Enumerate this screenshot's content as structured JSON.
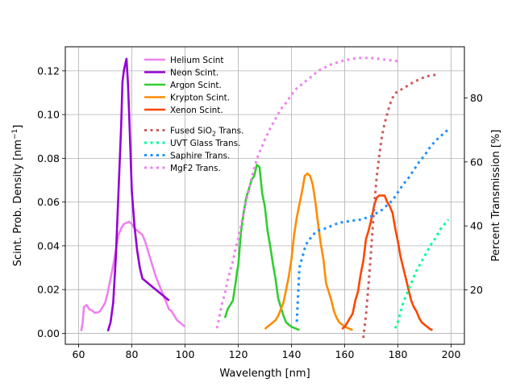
{
  "chart_data": {
    "type": "line",
    "xlabel": "Wavelength [nm]",
    "ylabel_left": "Scint. Prob. Density [nm",
    "ylabel_left_sup": "−1",
    "ylabel_left_close": "]",
    "ylabel_right": "Percent Transmission [%]",
    "xlim": [
      55,
      205
    ],
    "ylim_left": [
      -0.005,
      0.131
    ],
    "ylim_right": [
      3,
      96
    ],
    "x_ticks": [
      60,
      80,
      100,
      120,
      140,
      160,
      180,
      200
    ],
    "x_tick_labels": [
      "60",
      "80",
      "100",
      "120",
      "140",
      "160",
      "180",
      "200"
    ],
    "y_ticks_left": [
      0.0,
      0.02,
      0.04,
      0.06,
      0.08,
      0.1,
      0.12
    ],
    "y_tick_labels_left": [
      "0.00",
      "0.02",
      "0.04",
      "0.06",
      "0.08",
      "0.10",
      "0.12"
    ],
    "y_ticks_right": [
      20,
      40,
      60,
      80
    ],
    "y_tick_labels_right": [
      "20",
      "40",
      "60",
      "80"
    ],
    "grid": true,
    "legend_placement": "top-center",
    "series": [
      {
        "name": "Helium Scint",
        "axis": "left",
        "style": "solid",
        "color": "#ee82ee",
        "x": [
          61,
          61.5,
          62,
          63,
          64,
          65,
          66,
          67,
          68,
          69,
          70,
          71,
          72,
          73,
          74,
          75,
          76,
          77,
          78,
          79,
          80,
          81,
          82,
          83,
          84,
          85,
          86,
          87,
          88,
          89,
          90,
          91,
          92,
          93,
          94,
          95,
          96,
          97,
          98,
          99,
          100
        ],
        "y": [
          0.001,
          0.005,
          0.012,
          0.013,
          0.011,
          0.0105,
          0.0095,
          0.0095,
          0.01,
          0.012,
          0.014,
          0.019,
          0.025,
          0.031,
          0.038,
          0.045,
          0.048,
          0.05,
          0.0505,
          0.051,
          0.05,
          0.048,
          0.047,
          0.046,
          0.045,
          0.042,
          0.038,
          0.034,
          0.03,
          0.026,
          0.023,
          0.02,
          0.017,
          0.014,
          0.011,
          0.01,
          0.008,
          0.006,
          0.005,
          0.004,
          0.003
        ]
      },
      {
        "name": "Neon Scint.",
        "axis": "left",
        "style": "solid",
        "color": "#9400d3",
        "x": [
          71,
          72,
          73,
          74,
          75,
          76,
          76.5,
          77,
          77.5,
          78,
          78.5,
          79,
          80,
          81,
          82,
          83,
          84,
          85,
          86,
          87,
          88,
          89,
          90,
          91,
          92,
          93,
          94
        ],
        "y": [
          0.001,
          0.005,
          0.014,
          0.035,
          0.065,
          0.095,
          0.115,
          0.12,
          0.123,
          0.1255,
          0.115,
          0.1,
          0.065,
          0.049,
          0.038,
          0.03,
          0.025,
          0.024,
          0.023,
          0.022,
          0.021,
          0.02,
          0.019,
          0.018,
          0.017,
          0.016,
          0.015
        ]
      },
      {
        "name": "Argon Scint.",
        "axis": "left",
        "style": "solid",
        "color": "#32cd32",
        "x": [
          115,
          116,
          117,
          118,
          119,
          119.5,
          120,
          121,
          122,
          123,
          124,
          125,
          126,
          127,
          128,
          129,
          130,
          131,
          132,
          133,
          134,
          135,
          136,
          137,
          138,
          139,
          140,
          141,
          142,
          143
        ],
        "y": [
          0.007,
          0.011,
          0.013,
          0.015,
          0.023,
          0.028,
          0.031,
          0.046,
          0.055,
          0.062,
          0.066,
          0.07,
          0.072,
          0.077,
          0.076,
          0.064,
          0.058,
          0.047,
          0.04,
          0.032,
          0.025,
          0.016,
          0.012,
          0.008,
          0.005,
          0.004,
          0.003,
          0.0025,
          0.002,
          0.0015
        ]
      },
      {
        "name": "Krypton Scint.",
        "axis": "left",
        "style": "solid",
        "color": "#ff8c00",
        "x": [
          130,
          131,
          132,
          133,
          134,
          135,
          136,
          137,
          138,
          139,
          140,
          141,
          142,
          143,
          144,
          145,
          146,
          147,
          148,
          149,
          150,
          151,
          152,
          153,
          154,
          155,
          156,
          157,
          158,
          159,
          160,
          161,
          162,
          163
        ],
        "y": [
          0.002,
          0.003,
          0.004,
          0.005,
          0.006,
          0.008,
          0.011,
          0.014,
          0.02,
          0.026,
          0.034,
          0.045,
          0.053,
          0.059,
          0.065,
          0.072,
          0.073,
          0.072,
          0.068,
          0.06,
          0.05,
          0.041,
          0.034,
          0.023,
          0.019,
          0.015,
          0.01,
          0.007,
          0.005,
          0.004,
          0.003,
          0.0025,
          0.002,
          0.0015
        ]
      },
      {
        "name": "Xenon Scint.",
        "axis": "left",
        "style": "solid",
        "color": "#ff4500",
        "x": [
          159,
          160,
          161,
          162,
          163,
          164,
          165,
          166,
          167,
          168,
          169,
          170,
          171,
          172,
          173,
          174,
          175,
          176,
          177,
          178,
          179,
          180,
          181,
          182,
          183,
          184,
          185,
          186,
          187,
          188,
          189,
          190,
          191,
          192,
          193
        ],
        "y": [
          0.002,
          0.003,
          0.005,
          0.007,
          0.009,
          0.015,
          0.019,
          0.027,
          0.033,
          0.043,
          0.047,
          0.052,
          0.058,
          0.062,
          0.063,
          0.063,
          0.063,
          0.06,
          0.058,
          0.055,
          0.048,
          0.042,
          0.035,
          0.03,
          0.025,
          0.02,
          0.015,
          0.012,
          0.01,
          0.007,
          0.005,
          0.004,
          0.003,
          0.002,
          0.0015
        ]
      },
      {
        "name": "Fused SiO2 Trans.",
        "axis": "right",
        "style": "dotted",
        "color": "#cd5c5c",
        "x": [
          167,
          168,
          169,
          170,
          171,
          172,
          173,
          174,
          175,
          176,
          177,
          178,
          179,
          180,
          182,
          184,
          186,
          188,
          190,
          192,
          194,
          195
        ],
        "y": [
          5,
          12,
          22,
          33,
          45,
          55,
          62,
          68,
          72,
          75,
          78,
          80,
          81.5,
          82,
          83,
          84,
          85,
          85.8,
          86.5,
          87,
          87.2,
          87.3
        ]
      },
      {
        "name": "UVT Glass Trans.",
        "axis": "right",
        "style": "dotted",
        "color": "#00fa9a",
        "x": [
          179,
          180,
          181,
          182,
          183,
          184,
          185,
          186,
          187,
          188,
          189,
          190,
          191,
          192,
          193,
          194,
          195,
          196,
          197,
          198,
          199
        ],
        "y": [
          8,
          10,
          13,
          16,
          18,
          20,
          22,
          24,
          26,
          27.5,
          29,
          30.5,
          32,
          33.5,
          35,
          36,
          37.5,
          39,
          40,
          41,
          42
        ]
      },
      {
        "name": "Saphire Trans.",
        "axis": "right",
        "style": "dotted",
        "color": "#1e90ff",
        "x": [
          142,
          143,
          144,
          145,
          146,
          147,
          148,
          149,
          150,
          152,
          155,
          158,
          162,
          166,
          168,
          170,
          172,
          174,
          176,
          178,
          180,
          182,
          184,
          186,
          188,
          190,
          192,
          194,
          196,
          198,
          199
        ],
        "y": [
          10,
          27,
          30,
          33,
          35,
          36,
          37,
          38,
          38.5,
          39,
          40,
          41,
          41.5,
          42,
          42.5,
          43,
          44,
          45,
          46.5,
          48,
          50.5,
          53,
          55,
          57.5,
          60,
          62,
          64.5,
          66.5,
          68,
          69.5,
          70
        ]
      },
      {
        "name": "MgF2 Trans.",
        "axis": "right",
        "style": "dotted",
        "color": "#ee82ee",
        "x": [
          112,
          113,
          114,
          115,
          116,
          117,
          118,
          119,
          120,
          121,
          122,
          123,
          124,
          125,
          126,
          127,
          128,
          130,
          132,
          134,
          136,
          138,
          140,
          142,
          145,
          148,
          150,
          155,
          160,
          165,
          170,
          175,
          180
        ],
        "y": [
          8,
          12,
          16,
          19,
          23,
          26,
          29,
          33,
          36,
          40,
          44,
          48,
          51,
          55,
          58,
          61,
          63,
          67,
          70.5,
          73.5,
          76.5,
          78.5,
          81,
          83,
          85,
          87,
          88.5,
          90.5,
          91.8,
          92.5,
          92.5,
          92,
          91.5
        ]
      }
    ],
    "legend_groups": [
      {
        "entries": [
          {
            "label": "Helium Scint",
            "color": "#ee82ee",
            "style": "solid"
          },
          {
            "label": "Neon Scint.",
            "color": "#9400d3",
            "style": "solid"
          },
          {
            "label": "Argon Scint.",
            "color": "#32cd32",
            "style": "solid"
          },
          {
            "label": "Krypton Scint.",
            "color": "#ff8c00",
            "style": "solid"
          },
          {
            "label": "Xenon Scint.",
            "color": "#ff4500",
            "style": "solid"
          }
        ]
      },
      {
        "entries": [
          {
            "label": "Fused SiO",
            "sub": "2",
            "suffix": " Trans.",
            "color": "#cd5c5c",
            "style": "dotted"
          },
          {
            "label": "UVT Glass Trans.",
            "color": "#00fa9a",
            "style": "dotted"
          },
          {
            "label": "Saphire Trans.",
            "color": "#1e90ff",
            "style": "dotted"
          },
          {
            "label": "MgF2 Trans.",
            "color": "#ee82ee",
            "style": "dotted"
          }
        ]
      }
    ]
  }
}
